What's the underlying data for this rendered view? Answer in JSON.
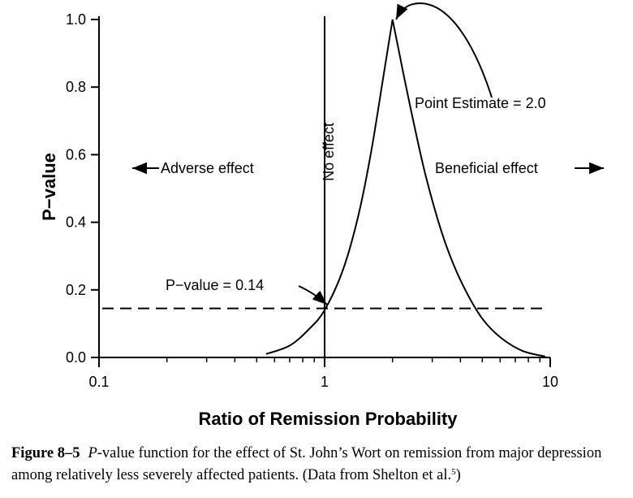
{
  "chart_data": {
    "type": "line",
    "title": "",
    "xlabel": "Ratio of Remission Probability",
    "ylabel": "P−value",
    "xscale": "log",
    "xlim": [
      0.1,
      10
    ],
    "ylim": [
      0,
      1.0
    ],
    "x_ticks": [
      0.1,
      1,
      10
    ],
    "x_tick_labels": [
      "0.1",
      "1",
      "10"
    ],
    "y_ticks": [
      0.0,
      0.2,
      0.4,
      0.6,
      0.8,
      1.0
    ],
    "y_tick_labels": [
      "0.0",
      "0.2",
      "0.4",
      "0.6",
      "0.8",
      "1.0"
    ],
    "grid": false,
    "legend": "none",
    "series": [
      {
        "x": [
          0.55,
          0.7,
          0.85,
          1.0,
          1.2,
          1.4,
          1.6,
          1.8,
          2.0,
          2.25,
          2.5,
          2.8,
          3.2,
          3.6,
          4.2,
          5.0,
          6.0,
          7.5,
          9.5
        ],
        "y": [
          0.01,
          0.035,
          0.083,
          0.14,
          0.255,
          0.41,
          0.6,
          0.81,
          1.0,
          0.83,
          0.685,
          0.54,
          0.4,
          0.3,
          0.2,
          0.115,
          0.06,
          0.02,
          0.003
        ]
      }
    ],
    "reference_lines": {
      "no_effect_x": 1,
      "p_value_y": 0.145
    },
    "annotations": {
      "point_estimate": "Point Estimate = 2.0",
      "no_effect": "No effect",
      "adverse": "Adverse effect",
      "beneficial": "Beneficial effect",
      "p_value": "P−value = 0.14"
    }
  },
  "caption": {
    "label": "Figure 8–5",
    "italic": "P",
    "text": "-value function for the effect of St. John’s Wort on remission from major depression among relatively less severely affected patients. (Data from Shelton et al.",
    "superscript": "5",
    "tail": ")"
  }
}
